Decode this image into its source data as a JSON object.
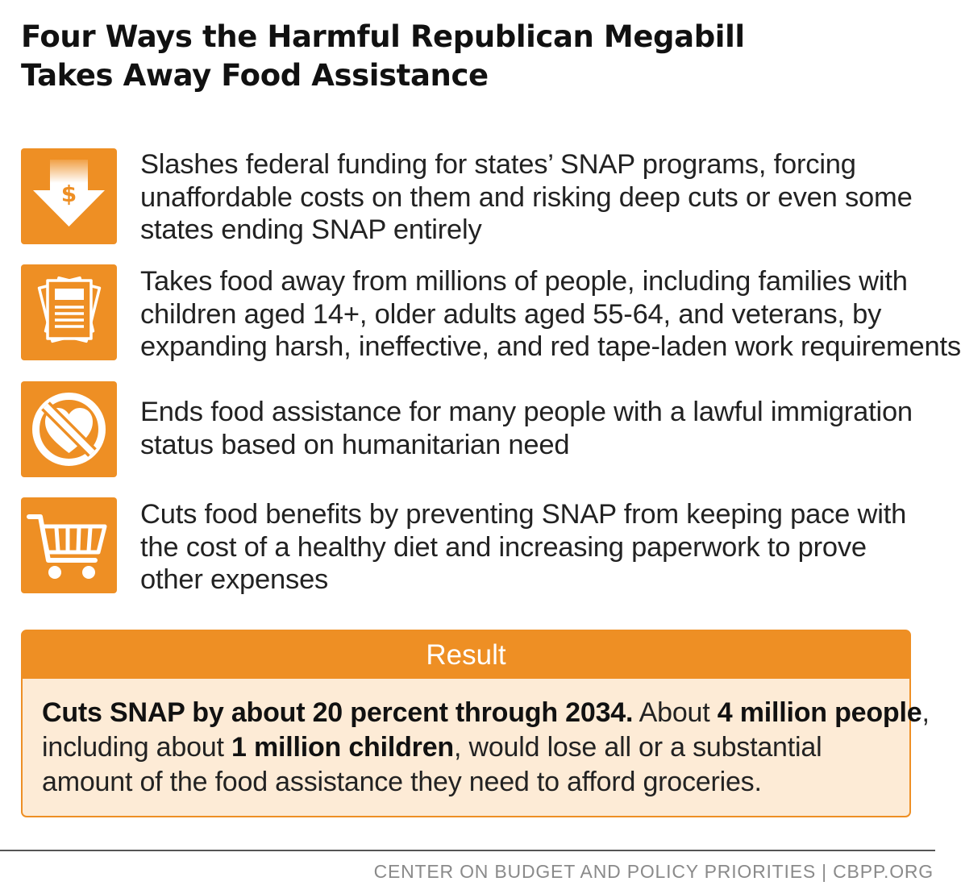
{
  "title": {
    "line1": "Four Ways the Harmful Republican Megabill",
    "line2": "Takes Away Food Assistance"
  },
  "colors": {
    "accent": "#ee8f24",
    "result_background": "#fdebd6",
    "text": "#222222",
    "footer": "#8a8a8a"
  },
  "items": [
    {
      "icon": "funding-cut-down-arrow-dollar-icon",
      "lines": [
        "Slashes federal funding for states’ SNAP programs, forcing",
        "unaffordable costs on them and risking deep cuts or even some",
        "states ending SNAP entirely"
      ]
    },
    {
      "icon": "paperwork-documents-icon",
      "lines": [
        "Takes food away from millions of people, including families with",
        "children aged 14+, older adults aged 55-64, and veterans, by",
        "expanding harsh, ineffective, and red tape-laden work requirements"
      ]
    },
    {
      "icon": "no-heart-prohibited-icon",
      "lines": [
        "Ends food assistance for many people with a lawful immigration",
        "status based on humanitarian need"
      ]
    },
    {
      "icon": "shopping-cart-icon",
      "lines": [
        "Cuts food benefits by preventing SNAP from keeping pace with",
        "the cost of a healthy diet and increasing paperwork to prove",
        "other expenses"
      ]
    }
  ],
  "result": {
    "header": "Result",
    "line1_bold": "Cuts SNAP by about 20 percent through 2034.",
    "line1_rest_a": " About ",
    "line1_bold_b": "4 million people",
    "line1_rest_b": ",",
    "line2_a": "including about ",
    "line2_bold": "1 million children",
    "line2_b": ", would lose all or a substantial",
    "line3": "amount of the food assistance they need to afford groceries."
  },
  "footer": {
    "source": "CENTER ON BUDGET AND POLICY PRIORITIES | CBPP.ORG"
  }
}
